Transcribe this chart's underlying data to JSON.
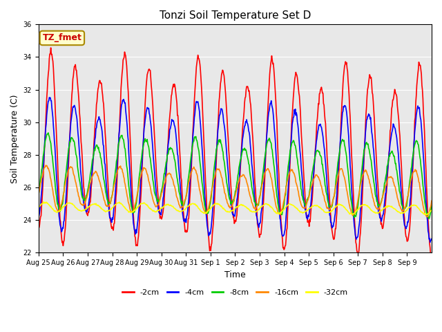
{
  "title": "Tonzi Soil Temperature Set D",
  "xlabel": "Time",
  "ylabel": "Soil Temperature (C)",
  "ylim": [
    22,
    36
  ],
  "yticks": [
    22,
    24,
    26,
    28,
    30,
    32,
    34,
    36
  ],
  "bg_color": "#e8e8e8",
  "line_colors": {
    "-2cm": "#ff0000",
    "-4cm": "#0000ff",
    "-8cm": "#00cc00",
    "-16cm": "#ff8800",
    "-32cm": "#ffff00"
  },
  "annotation_text": "TZ_fmet",
  "annotation_color": "#cc0000",
  "annotation_bg": "#ffffcc",
  "x_tick_labels": [
    "Aug 25",
    "Aug 26",
    "Aug 27",
    "Aug 28",
    "Aug 29",
    "Aug 30",
    "Aug 31",
    "Sep 1",
    "Sep 2",
    "Sep 3",
    "Sep 4",
    "Sep 5",
    "Sep 6",
    "Sep 7",
    "Sep 8",
    "Sep 9"
  ],
  "num_days": 16
}
